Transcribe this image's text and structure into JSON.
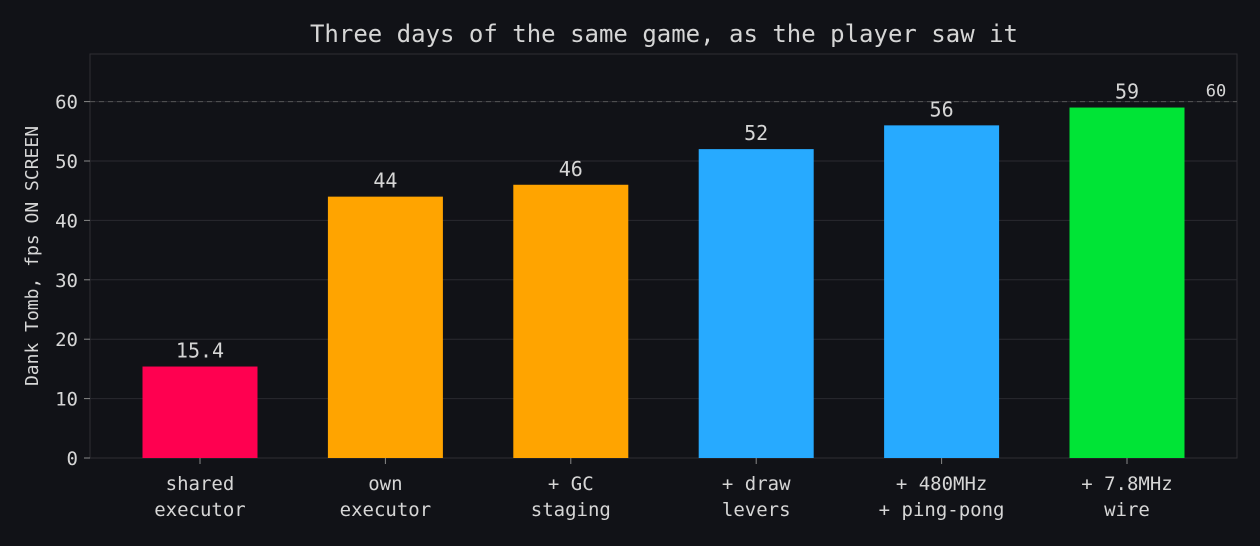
{
  "chart_data": {
    "type": "bar",
    "title": "Three days of the same game, as the player saw it",
    "xlabel": "",
    "ylabel": "Dank Tomb, fps ON SCREEN",
    "ylim": [
      0,
      68
    ],
    "yticks": [
      0,
      10,
      20,
      30,
      40,
      50,
      60
    ],
    "grid": true,
    "categories": [
      [
        "shared",
        "executor"
      ],
      [
        "own",
        "executor"
      ],
      [
        "+ GC",
        "staging"
      ],
      [
        "+ draw",
        "levers"
      ],
      [
        "+ 480MHz",
        "+ ping-pong"
      ],
      [
        "+ 7.8MHz",
        "wire"
      ]
    ],
    "values": [
      15.4,
      44,
      46,
      52,
      56,
      59
    ],
    "value_labels": [
      "15.4",
      "44",
      "46",
      "52",
      "56",
      "59"
    ],
    "colors": [
      "#ff0050",
      "#ffa400",
      "#ffa400",
      "#27aaff",
      "#27aaff",
      "#00e436"
    ],
    "reference_line": {
      "value": 60,
      "label": "60",
      "color": "#555555"
    }
  }
}
